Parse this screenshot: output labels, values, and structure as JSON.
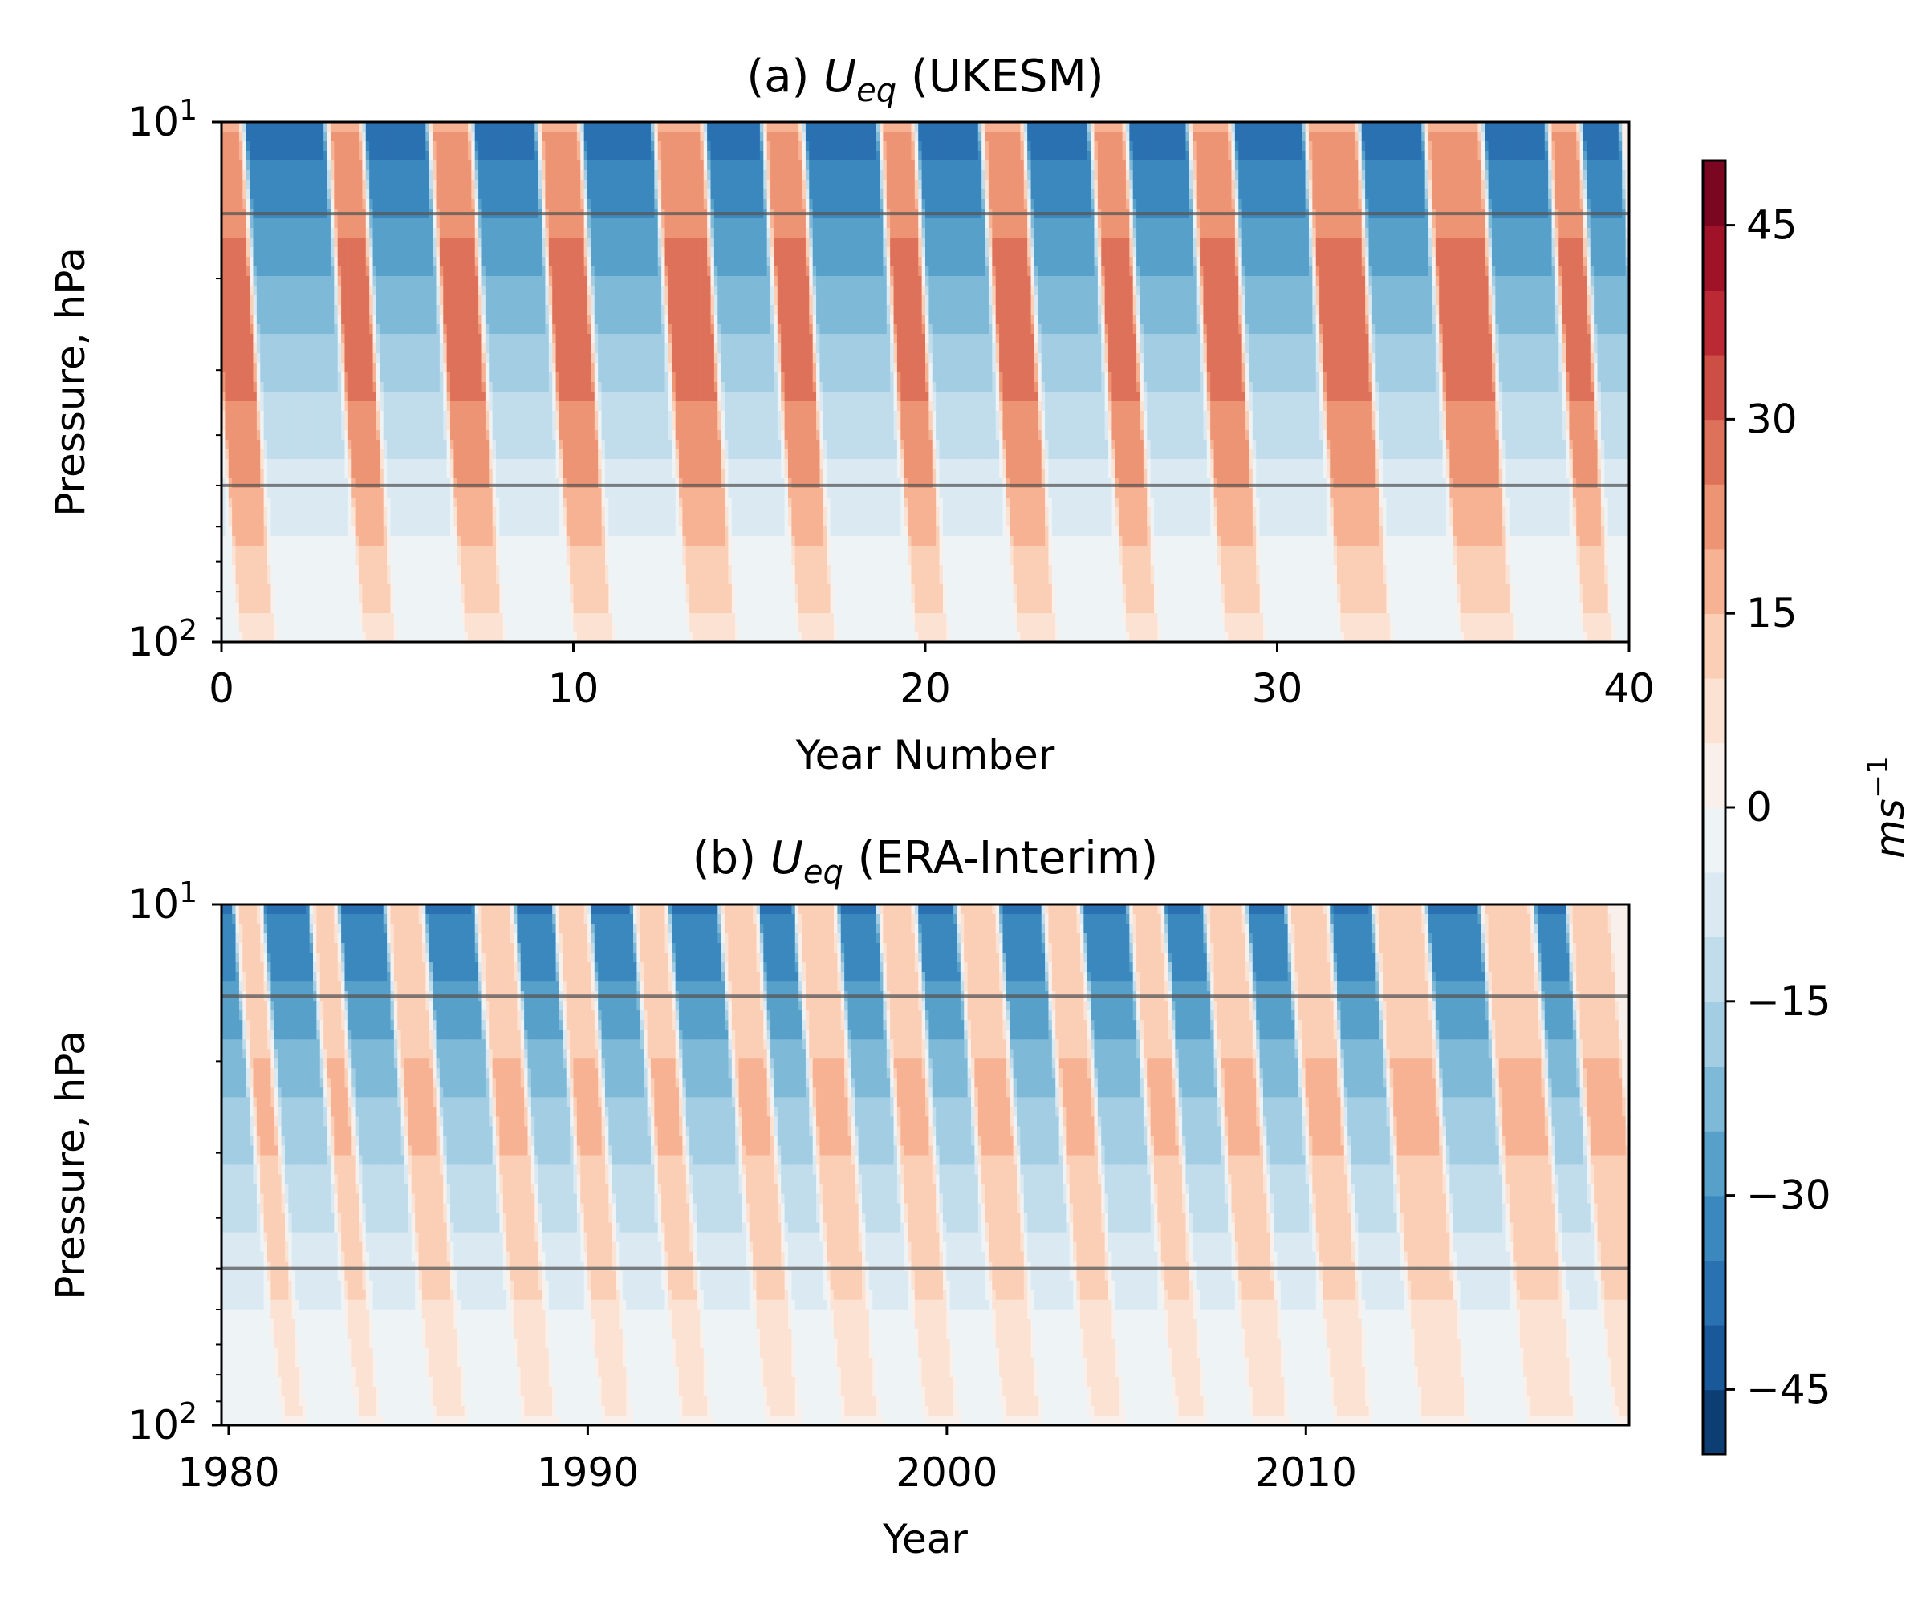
{
  "colors": {
    "positive_light": "#fbe3d6",
    "positive_mid": "#f4a582",
    "positive_dark": "#d6604d",
    "positive_max": "#67001f",
    "negative_light": "#d1e5f0",
    "negative_mid": "#4393c3",
    "negative_dark": "#2166ac",
    "negative_max": "#053061",
    "reference_line": "#555555"
  },
  "colorbar": {
    "label_base": "ms",
    "label_exp": "−1",
    "ticks": [
      {
        "value": 45,
        "label": "45"
      },
      {
        "value": 30,
        "label": "30"
      },
      {
        "value": 15,
        "label": "15"
      },
      {
        "value": 0,
        "label": "0"
      },
      {
        "value": -15,
        "label": "−15"
      },
      {
        "value": -30,
        "label": "−30"
      },
      {
        "value": -45,
        "label": "−45"
      }
    ],
    "range": [
      -50,
      50
    ],
    "levels": 20
  },
  "chart_data": [
    {
      "type": "heatmap",
      "title_prefix": "(a) ",
      "title_var": "U",
      "title_sub": "eq",
      "title_suffix": " (UKESM)",
      "xlabel": "Year Number",
      "ylabel": "Pressure, hPa",
      "x_range": [
        0,
        40
      ],
      "y_range_hpa": [
        10,
        100
      ],
      "y_scale": "log",
      "x_ticks": [
        {
          "value": 0,
          "label": "0"
        },
        {
          "value": 10,
          "label": "10"
        },
        {
          "value": 20,
          "label": "20"
        },
        {
          "value": 30,
          "label": "30"
        },
        {
          "value": 40,
          "label": "40"
        }
      ],
      "y_ticks": [
        {
          "value": 10,
          "base": "10",
          "exp": "1"
        },
        {
          "value": 100,
          "base": "10",
          "exp": "2"
        }
      ],
      "reference_lines_hpa": [
        15,
        50
      ],
      "qbo_westerly_onsets_top": [
        0.5,
        4.0,
        6.9,
        10.0,
        13.3,
        16.4,
        19.7,
        22.6,
        25.7,
        28.5,
        31.8,
        35.2,
        38.7
      ],
      "qbo_easterly_onsets_top": [
        1.6,
        5.0,
        8.1,
        11.2,
        14.7,
        17.5,
        20.7,
        23.8,
        26.7,
        29.7,
        33.3,
        36.8,
        39.6
      ],
      "descent_years_top_to_bottom": 1.0,
      "peak_westerly_ms": 28,
      "peak_easterly_ms": -38
    },
    {
      "type": "heatmap",
      "title_prefix": "(b) ",
      "title_var": "U",
      "title_sub": "eq",
      "title_suffix": " (ERA-Interim)",
      "xlabel": "Year",
      "ylabel": "Pressure, hPa",
      "x_range": [
        1979.8,
        2019.0
      ],
      "y_range_hpa": [
        10,
        100
      ],
      "y_scale": "log",
      "x_ticks": [
        {
          "value": 1980,
          "label": "1980"
        },
        {
          "value": 1990,
          "label": "1990"
        },
        {
          "value": 2000,
          "label": "2000"
        },
        {
          "value": 2010,
          "label": "2010"
        }
      ],
      "y_ticks": [
        {
          "value": 10,
          "base": "10",
          "exp": "1"
        },
        {
          "value": 100,
          "base": "10",
          "exp": "2"
        }
      ],
      "reference_lines_hpa": [
        15,
        50
      ],
      "qbo_westerly_onsets_top": [
        1981.5,
        1983.6,
        1985.7,
        1988.2,
        1990.4,
        1992.6,
        1995.0,
        1997.1,
        1999.4,
        2001.6,
        2004.0,
        2006.4,
        2008.5,
        2010.8,
        2013.2,
        2016.2,
        2018.6
      ],
      "qbo_easterly_onsets_top": [
        1982.2,
        1984.3,
        1986.7,
        1989.2,
        1991.3,
        1993.5,
        1996.0,
        1998.2,
        2000.4,
        2002.7,
        2005.0,
        2007.3,
        2009.6,
        2011.9,
        2014.6,
        2017.6
      ],
      "descent_years_top_to_bottom": 1.3,
      "peak_westerly_ms": 16,
      "peak_easterly_ms": -36
    }
  ]
}
